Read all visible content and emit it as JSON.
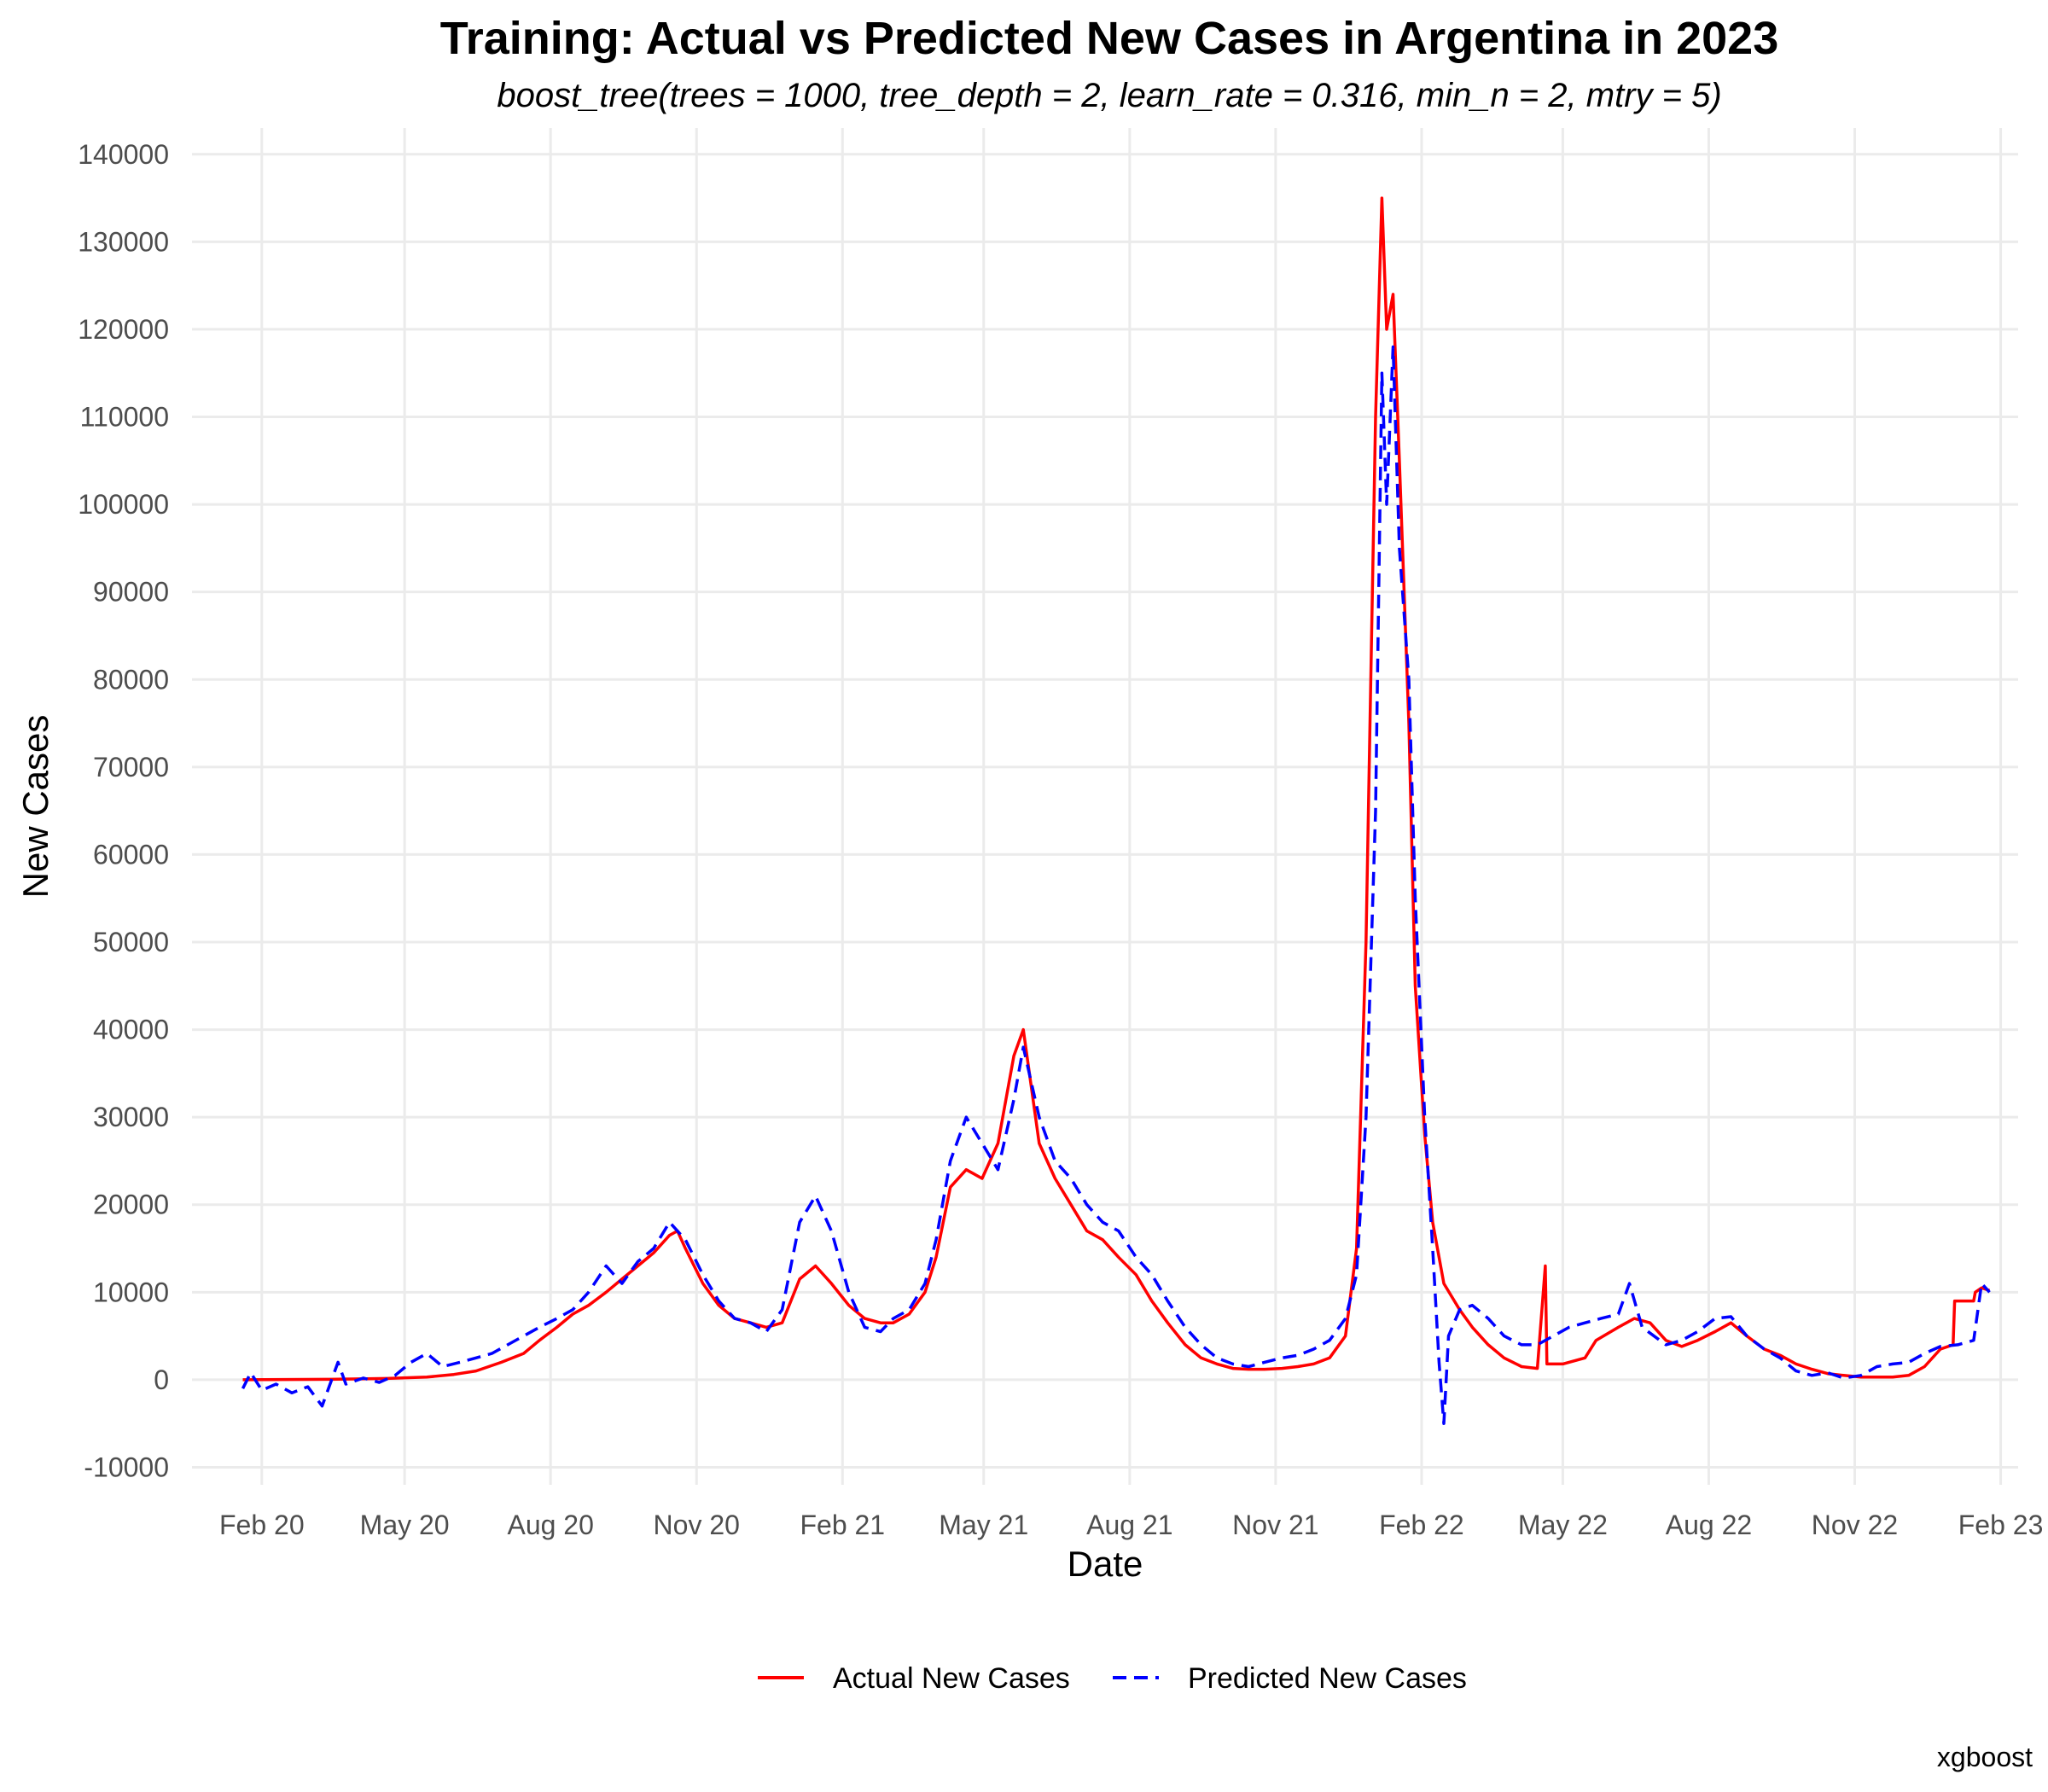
{
  "chart_data": {
    "type": "line",
    "title": "Training: Actual vs Predicted New Cases in Argentina in 2023",
    "subtitle": "boost_tree(trees = 1000, tree_depth = 2, learn_rate = 0.316, min_n = 2, mtry = 5)",
    "xlabel": "Date",
    "ylabel": "New Cases",
    "caption": "xgboost",
    "x_ticks": [
      {
        "date": "2020-02-01",
        "label": "Feb 20"
      },
      {
        "date": "2020-05-01",
        "label": "May 20"
      },
      {
        "date": "2020-08-01",
        "label": "Aug 20"
      },
      {
        "date": "2020-11-01",
        "label": "Nov 20"
      },
      {
        "date": "2021-02-01",
        "label": "Feb 21"
      },
      {
        "date": "2021-05-01",
        "label": "May 21"
      },
      {
        "date": "2021-08-01",
        "label": "Aug 21"
      },
      {
        "date": "2021-11-01",
        "label": "Nov 21"
      },
      {
        "date": "2022-02-01",
        "label": "Feb 22"
      },
      {
        "date": "2022-05-01",
        "label": "May 22"
      },
      {
        "date": "2022-08-01",
        "label": "Aug 22"
      },
      {
        "date": "2022-11-01",
        "label": "Nov 22"
      },
      {
        "date": "2023-02-01",
        "label": "Feb 23"
      }
    ],
    "xlim": [
      "2019-12-19",
      "2023-02-12"
    ],
    "y_ticks": [
      -10000,
      0,
      10000,
      20000,
      30000,
      40000,
      50000,
      60000,
      70000,
      80000,
      90000,
      100000,
      110000,
      120000,
      130000,
      140000
    ],
    "ylim": [
      -12000,
      143000
    ],
    "grid": true,
    "legend_position": "bottom",
    "series": [
      {
        "name": "Actual New Cases",
        "color": "#ff0000",
        "dash": "solid",
        "points": [
          [
            "2020-01-20",
            0
          ],
          [
            "2020-03-15",
            50
          ],
          [
            "2020-04-20",
            150
          ],
          [
            "2020-05-15",
            300
          ],
          [
            "2020-06-01",
            600
          ],
          [
            "2020-06-15",
            1000
          ],
          [
            "2020-07-01",
            2000
          ],
          [
            "2020-07-15",
            3000
          ],
          [
            "2020-07-25",
            4500
          ],
          [
            "2020-08-05",
            6000
          ],
          [
            "2020-08-15",
            7500
          ],
          [
            "2020-08-25",
            8500
          ],
          [
            "2020-09-05",
            10000
          ],
          [
            "2020-09-15",
            11500
          ],
          [
            "2020-09-25",
            13000
          ],
          [
            "2020-10-05",
            14500
          ],
          [
            "2020-10-15",
            16500
          ],
          [
            "2020-10-20",
            17000
          ],
          [
            "2020-10-25",
            15000
          ],
          [
            "2020-11-05",
            11000
          ],
          [
            "2020-11-15",
            8500
          ],
          [
            "2020-11-25",
            7000
          ],
          [
            "2020-12-05",
            6500
          ],
          [
            "2020-12-15",
            6000
          ],
          [
            "2020-12-25",
            6500
          ],
          [
            "2021-01-05",
            11500
          ],
          [
            "2021-01-15",
            13000
          ],
          [
            "2021-01-25",
            11000
          ],
          [
            "2021-02-05",
            8500
          ],
          [
            "2021-02-15",
            7000
          ],
          [
            "2021-02-25",
            6500
          ],
          [
            "2021-03-05",
            6500
          ],
          [
            "2021-03-15",
            7500
          ],
          [
            "2021-03-25",
            10000
          ],
          [
            "2021-04-01",
            14000
          ],
          [
            "2021-04-10",
            22000
          ],
          [
            "2021-04-20",
            24000
          ],
          [
            "2021-04-30",
            23000
          ],
          [
            "2021-05-10",
            27000
          ],
          [
            "2021-05-20",
            37000
          ],
          [
            "2021-05-26",
            40000
          ],
          [
            "2021-06-05",
            27000
          ],
          [
            "2021-06-15",
            23000
          ],
          [
            "2021-06-25",
            20000
          ],
          [
            "2021-07-05",
            17000
          ],
          [
            "2021-07-15",
            16000
          ],
          [
            "2021-07-25",
            14000
          ],
          [
            "2021-08-05",
            12000
          ],
          [
            "2021-08-15",
            9000
          ],
          [
            "2021-08-25",
            6500
          ],
          [
            "2021-09-05",
            4000
          ],
          [
            "2021-09-15",
            2500
          ],
          [
            "2021-09-25",
            1800
          ],
          [
            "2021-10-05",
            1300
          ],
          [
            "2021-10-15",
            1200
          ],
          [
            "2021-10-25",
            1200
          ],
          [
            "2021-11-05",
            1300
          ],
          [
            "2021-11-15",
            1500
          ],
          [
            "2021-11-25",
            1800
          ],
          [
            "2021-12-05",
            2500
          ],
          [
            "2021-12-15",
            5000
          ],
          [
            "2021-12-22",
            15000
          ],
          [
            "2021-12-28",
            50000
          ],
          [
            "2022-01-03",
            110000
          ],
          [
            "2022-01-07",
            135000
          ],
          [
            "2022-01-10",
            120000
          ],
          [
            "2022-01-14",
            124000
          ],
          [
            "2022-01-18",
            105000
          ],
          [
            "2022-01-24",
            75000
          ],
          [
            "2022-01-28",
            45000
          ],
          [
            "2022-02-03",
            28000
          ],
          [
            "2022-02-08",
            18000
          ],
          [
            "2022-02-15",
            11000
          ],
          [
            "2022-02-25",
            8000
          ],
          [
            "2022-03-05",
            6000
          ],
          [
            "2022-03-15",
            4000
          ],
          [
            "2022-03-25",
            2500
          ],
          [
            "2022-04-05",
            1500
          ],
          [
            "2022-04-15",
            1300
          ],
          [
            "2022-04-20",
            13000
          ],
          [
            "2022-04-21",
            1800
          ],
          [
            "2022-05-01",
            1800
          ],
          [
            "2022-05-15",
            2500
          ],
          [
            "2022-05-22",
            4500
          ],
          [
            "2022-06-05",
            6000
          ],
          [
            "2022-06-15",
            7000
          ],
          [
            "2022-06-25",
            6500
          ],
          [
            "2022-07-05",
            4500
          ],
          [
            "2022-07-15",
            3800
          ],
          [
            "2022-07-25",
            4500
          ],
          [
            "2022-08-05",
            5500
          ],
          [
            "2022-08-15",
            6500
          ],
          [
            "2022-08-25",
            5000
          ],
          [
            "2022-09-05",
            3500
          ],
          [
            "2022-09-15",
            2800
          ],
          [
            "2022-09-25",
            1800
          ],
          [
            "2022-10-05",
            1200
          ],
          [
            "2022-10-15",
            700
          ],
          [
            "2022-10-25",
            500
          ],
          [
            "2022-11-05",
            300
          ],
          [
            "2022-11-15",
            300
          ],
          [
            "2022-11-25",
            300
          ],
          [
            "2022-12-05",
            500
          ],
          [
            "2022-12-15",
            1500
          ],
          [
            "2022-12-25",
            3500
          ],
          [
            "2023-01-02",
            4000
          ],
          [
            "2023-01-03",
            9000
          ],
          [
            "2023-01-15",
            9000
          ],
          [
            "2023-01-16",
            10000
          ],
          [
            "2023-01-20",
            10500
          ],
          [
            "2023-01-25",
            10200
          ]
        ]
      },
      {
        "name": "Predicted New Cases",
        "color": "#0000ff",
        "dash": "dashed",
        "points": [
          [
            "2020-01-20",
            -1000
          ],
          [
            "2020-01-25",
            800
          ],
          [
            "2020-02-01",
            -1200
          ],
          [
            "2020-02-10",
            -500
          ],
          [
            "2020-02-20",
            -1500
          ],
          [
            "2020-03-01",
            -800
          ],
          [
            "2020-03-10",
            -3000
          ],
          [
            "2020-03-20",
            2000
          ],
          [
            "2020-03-25",
            -500
          ],
          [
            "2020-04-05",
            200
          ],
          [
            "2020-04-15",
            -300
          ],
          [
            "2020-04-25",
            500
          ],
          [
            "2020-05-05",
            2000
          ],
          [
            "2020-05-15",
            3000
          ],
          [
            "2020-05-25",
            1500
          ],
          [
            "2020-06-05",
            2000
          ],
          [
            "2020-06-15",
            2500
          ],
          [
            "2020-06-25",
            3000
          ],
          [
            "2020-07-05",
            4000
          ],
          [
            "2020-07-15",
            5000
          ],
          [
            "2020-07-25",
            6000
          ],
          [
            "2020-08-05",
            7000
          ],
          [
            "2020-08-15",
            8000
          ],
          [
            "2020-08-25",
            10000
          ],
          [
            "2020-09-05",
            13000
          ],
          [
            "2020-09-15",
            11000
          ],
          [
            "2020-09-25",
            13500
          ],
          [
            "2020-10-05",
            15000
          ],
          [
            "2020-10-15",
            18000
          ],
          [
            "2020-10-25",
            16000
          ],
          [
            "2020-11-05",
            12000
          ],
          [
            "2020-11-15",
            9000
          ],
          [
            "2020-11-25",
            7000
          ],
          [
            "2020-12-05",
            6500
          ],
          [
            "2020-12-15",
            5500
          ],
          [
            "2020-12-25",
            8000
          ],
          [
            "2021-01-05",
            18000
          ],
          [
            "2021-01-15",
            21000
          ],
          [
            "2021-01-25",
            17000
          ],
          [
            "2021-02-05",
            10000
          ],
          [
            "2021-02-15",
            6000
          ],
          [
            "2021-02-25",
            5500
          ],
          [
            "2021-03-05",
            7000
          ],
          [
            "2021-03-15",
            8000
          ],
          [
            "2021-03-25",
            11000
          ],
          [
            "2021-04-01",
            16000
          ],
          [
            "2021-04-10",
            25000
          ],
          [
            "2021-04-20",
            30000
          ],
          [
            "2021-04-30",
            27000
          ],
          [
            "2021-05-10",
            24000
          ],
          [
            "2021-05-20",
            32000
          ],
          [
            "2021-05-26",
            38000
          ],
          [
            "2021-06-05",
            30000
          ],
          [
            "2021-06-15",
            25000
          ],
          [
            "2021-06-25",
            23000
          ],
          [
            "2021-07-05",
            20000
          ],
          [
            "2021-07-15",
            18000
          ],
          [
            "2021-07-25",
            17000
          ],
          [
            "2021-08-05",
            14000
          ],
          [
            "2021-08-15",
            12000
          ],
          [
            "2021-08-25",
            9000
          ],
          [
            "2021-09-05",
            6000
          ],
          [
            "2021-09-15",
            4000
          ],
          [
            "2021-09-25",
            2500
          ],
          [
            "2021-10-05",
            1800
          ],
          [
            "2021-10-15",
            1500
          ],
          [
            "2021-10-25",
            2000
          ],
          [
            "2021-11-05",
            2500
          ],
          [
            "2021-11-15",
            2800
          ],
          [
            "2021-11-25",
            3500
          ],
          [
            "2021-12-05",
            4500
          ],
          [
            "2021-12-15",
            7000
          ],
          [
            "2021-12-22",
            12000
          ],
          [
            "2021-12-28",
            30000
          ],
          [
            "2022-01-03",
            65000
          ],
          [
            "2022-01-07",
            115000
          ],
          [
            "2022-01-10",
            100000
          ],
          [
            "2022-01-14",
            118000
          ],
          [
            "2022-01-18",
            95000
          ],
          [
            "2022-01-24",
            80000
          ],
          [
            "2022-01-28",
            55000
          ],
          [
            "2022-02-03",
            30000
          ],
          [
            "2022-02-08",
            15000
          ],
          [
            "2022-02-12",
            2000
          ],
          [
            "2022-02-15",
            -5000
          ],
          [
            "2022-02-18",
            5000
          ],
          [
            "2022-02-25",
            8000
          ],
          [
            "2022-03-05",
            8500
          ],
          [
            "2022-03-15",
            7000
          ],
          [
            "2022-03-25",
            5000
          ],
          [
            "2022-04-05",
            4000
          ],
          [
            "2022-04-15",
            4000
          ],
          [
            "2022-04-25",
            5000
          ],
          [
            "2022-05-05",
            6000
          ],
          [
            "2022-05-15",
            6500
          ],
          [
            "2022-05-25",
            7000
          ],
          [
            "2022-06-05",
            7500
          ],
          [
            "2022-06-12",
            11000
          ],
          [
            "2022-06-20",
            6000
          ],
          [
            "2022-07-05",
            4000
          ],
          [
            "2022-07-15",
            4500
          ],
          [
            "2022-07-25",
            5500
          ],
          [
            "2022-08-05",
            7000
          ],
          [
            "2022-08-15",
            7200
          ],
          [
            "2022-08-25",
            5000
          ],
          [
            "2022-09-05",
            3500
          ],
          [
            "2022-09-15",
            2500
          ],
          [
            "2022-09-25",
            1000
          ],
          [
            "2022-10-05",
            500
          ],
          [
            "2022-10-15",
            800
          ],
          [
            "2022-10-25",
            200
          ],
          [
            "2022-11-05",
            500
          ],
          [
            "2022-11-15",
            1500
          ],
          [
            "2022-11-25",
            1800
          ],
          [
            "2022-12-05",
            2000
          ],
          [
            "2022-12-15",
            3000
          ],
          [
            "2022-12-25",
            3800
          ],
          [
            "2023-01-05",
            4000
          ],
          [
            "2023-01-15",
            4500
          ],
          [
            "2023-01-20",
            11000
          ],
          [
            "2023-01-25",
            10000
          ]
        ]
      }
    ]
  }
}
